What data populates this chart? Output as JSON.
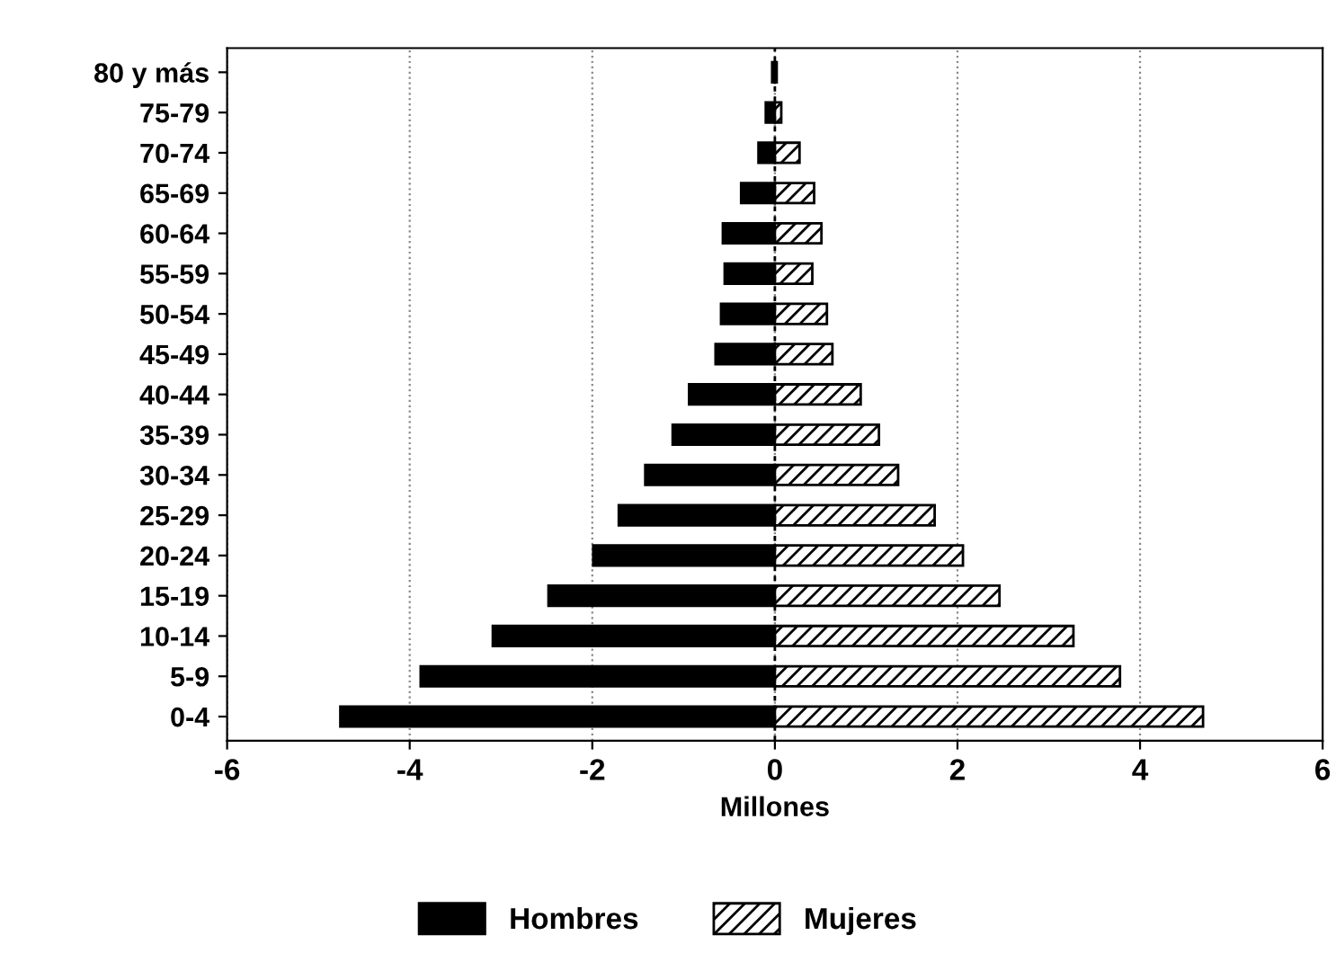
{
  "chart_data": {
    "type": "bar",
    "orientation": "horizontal",
    "xlabel": "Millones",
    "categories": [
      "80 y más",
      "75-79",
      "70-74",
      "65-69",
      "60-64",
      "55-59",
      "50-54",
      "45-49",
      "40-44",
      "35-39",
      "30-34",
      "25-29",
      "20-24",
      "15-19",
      "10-14",
      "5-9",
      "0-4"
    ],
    "series": [
      {
        "name": "Hombres",
        "color": "#000000",
        "values": [
          -0.03,
          -0.1,
          -0.18,
          -0.37,
          -0.57,
          -0.55,
          -0.59,
          -0.65,
          -0.94,
          -1.12,
          -1.42,
          -1.71,
          -1.99,
          -2.48,
          -3.09,
          -3.88,
          -4.76
        ]
      },
      {
        "name": "Mujeres",
        "color": "#000000",
        "values": [
          0.02,
          0.07,
          0.27,
          0.43,
          0.51,
          0.41,
          0.57,
          0.63,
          0.94,
          1.14,
          1.35,
          1.75,
          2.06,
          2.46,
          3.27,
          3.78,
          4.69
        ]
      }
    ],
    "xlim": [
      -6,
      6
    ],
    "xticks": [
      -6,
      -4,
      -2,
      0,
      2,
      4,
      6
    ],
    "grid": "x",
    "legend": "bottom",
    "stacked": true,
    "ref_lines": [
      {
        "axis": "x",
        "value": 0,
        "color": "#000000",
        "line_style": "dashed"
      }
    ]
  }
}
